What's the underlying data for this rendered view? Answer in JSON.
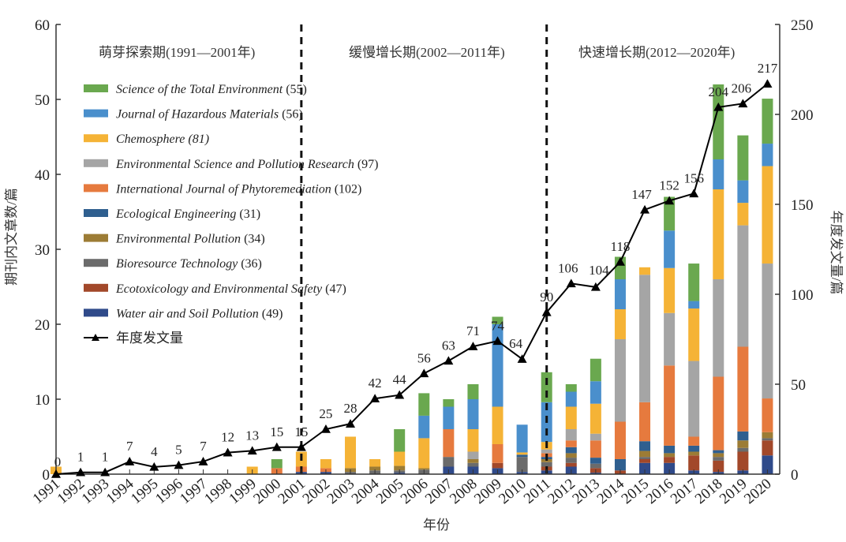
{
  "chart_data": {
    "type": "bar",
    "subtype": "stacked-bar-with-line",
    "title": "",
    "xlabel": "年份",
    "ylabel": "期刊内文章数/篇",
    "y2label": "年度发文量/篇",
    "ylim": [
      0,
      60
    ],
    "y2lim": [
      0,
      250
    ],
    "yticks": [
      0,
      10,
      20,
      30,
      40,
      50,
      60
    ],
    "y2ticks": [
      0,
      50,
      100,
      150,
      200,
      250
    ],
    "grid": false,
    "legend_position": "top-left",
    "categories": [
      "1991",
      "1992",
      "1993",
      "1994",
      "1995",
      "1996",
      "1997",
      "1998",
      "1999",
      "2000",
      "2001",
      "2002",
      "2003",
      "2004",
      "2005",
      "2006",
      "2007",
      "2008",
      "2009",
      "2010",
      "2011",
      "2012",
      "2013",
      "2014",
      "2015",
      "2016",
      "2017",
      "2018",
      "2019",
      "2020"
    ],
    "periods": [
      {
        "label": "萌芽探索期(1991—2001年)",
        "boundary_after": "2001"
      },
      {
        "label": "缓慢增长期(2002—2011年)",
        "boundary_after": "2011"
      },
      {
        "label": "快速增长期(2012—2020年)"
      }
    ],
    "series": [
      {
        "name": "Water air and Soil Pollution",
        "count": "(49)",
        "color": "#2f4a8a",
        "values": [
          0,
          0,
          0,
          0,
          0,
          0,
          0,
          0,
          0,
          0,
          0.3,
          0.3,
          0,
          0,
          0.2,
          0,
          1,
          1,
          0.8,
          0.3,
          0.5,
          1,
          0.2,
          0,
          1.5,
          1.5,
          0.5,
          0.3,
          0.5,
          2.5
        ]
      },
      {
        "name": "Ecotoxicology and Environmental Safety",
        "count": "(47)",
        "color": "#a2482a",
        "values": [
          0,
          0,
          0,
          0,
          0,
          0,
          0,
          0,
          0,
          0,
          0,
          0,
          0,
          0,
          0,
          0,
          0,
          0,
          0.7,
          0,
          0.5,
          0.5,
          0.6,
          0.5,
          0.5,
          0.8,
          2,
          1.5,
          2.5,
          2
        ]
      },
      {
        "name": "Bioresource Technology",
        "count": "(36)",
        "color": "#6b6b6b",
        "values": [
          0,
          0,
          0,
          0,
          0,
          0,
          0,
          0,
          0,
          0,
          0,
          0,
          0.3,
          0.5,
          0.3,
          0.6,
          1.3,
          0.5,
          0,
          2,
          0.6,
          0.7,
          0.6,
          0,
          0.3,
          0,
          0,
          0.5,
          0.5,
          0.3
        ]
      },
      {
        "name": "Environmental Pollution",
        "count": "(34)",
        "color": "#9c7c35",
        "values": [
          0,
          0,
          0,
          0,
          0,
          0,
          0,
          0,
          0,
          0,
          0,
          0,
          0.5,
          0.5,
          0.6,
          0.2,
          0,
          0.5,
          0,
          0,
          0.4,
          0.6,
          0,
          0,
          0.8,
          0.5,
          0.5,
          0.5,
          1,
          0.8
        ]
      },
      {
        "name": "Ecological Engineering",
        "count": "(31)",
        "color": "#2f5f8f",
        "values": [
          0,
          0,
          0,
          0,
          0,
          0,
          0,
          0,
          0,
          0,
          0,
          0,
          0,
          0,
          0,
          0,
          0,
          0,
          0,
          0.3,
          0.3,
          0.8,
          0.8,
          1.5,
          1.3,
          1,
          0.8,
          0.4,
          1.2,
          0
        ]
      },
      {
        "name": "International Journal of Phytoremediation",
        "count": "(102)",
        "color": "#e67a3e",
        "values": [
          0,
          0,
          0,
          0,
          0,
          0,
          0,
          0,
          0,
          0.8,
          0.7,
          0.5,
          0,
          0,
          0,
          0,
          3.7,
          0,
          2.5,
          0,
          0.5,
          0.9,
          2.3,
          5,
          5.2,
          10.7,
          1.2,
          9.8,
          11.3,
          4.5
        ]
      },
      {
        "name": "Environmental Science and Pollution Research",
        "count": "(97)",
        "color": "#a5a5a5",
        "values": [
          0,
          0,
          0,
          0,
          0,
          0,
          0,
          0,
          0,
          0,
          0,
          0,
          0,
          0,
          0,
          0,
          0,
          1,
          0,
          0,
          0.5,
          1.5,
          0.9,
          11,
          17,
          7,
          10.1,
          13,
          16.2,
          18
        ]
      },
      {
        "name": "Chemosphere",
        "count": "(81)",
        "color": "#f5b336",
        "values": [
          1,
          0,
          0,
          0,
          0,
          0,
          0,
          0,
          1,
          0,
          2,
          1.2,
          4.2,
          1,
          1.9,
          4,
          0,
          3,
          5,
          0.3,
          1,
          3,
          4,
          4,
          1,
          6,
          7,
          12,
          3,
          13
        ]
      },
      {
        "name": "Journal of Hazardous Materials",
        "count": "(56)",
        "color": "#4a8fcc",
        "values": [
          0,
          0,
          0,
          0,
          0,
          0,
          0,
          0,
          0,
          0,
          0,
          0,
          0,
          0,
          0,
          3,
          3,
          4,
          11,
          3.7,
          5.3,
          2,
          3,
          4,
          0,
          5,
          1,
          4,
          3,
          3
        ]
      },
      {
        "name": "Science of the Total Environment",
        "count": "(55)",
        "color": "#6aa84f",
        "values": [
          0,
          0,
          0,
          0,
          0,
          0,
          0,
          0,
          0,
          1.2,
          0,
          0,
          0,
          0,
          3,
          3,
          1,
          2,
          1,
          0,
          4,
          1,
          3,
          3,
          0,
          4.5,
          5,
          10,
          6,
          6
        ]
      }
    ],
    "line_series": {
      "name": "年度发文量",
      "axis": "right",
      "color": "#000000",
      "marker": "triangle",
      "values": [
        0,
        1,
        1,
        7,
        4,
        5,
        7,
        12,
        13,
        15,
        15,
        25,
        28,
        42,
        44,
        56,
        63,
        71,
        74,
        64,
        90,
        106,
        104,
        118,
        147,
        152,
        156,
        204,
        206,
        217
      ]
    }
  }
}
